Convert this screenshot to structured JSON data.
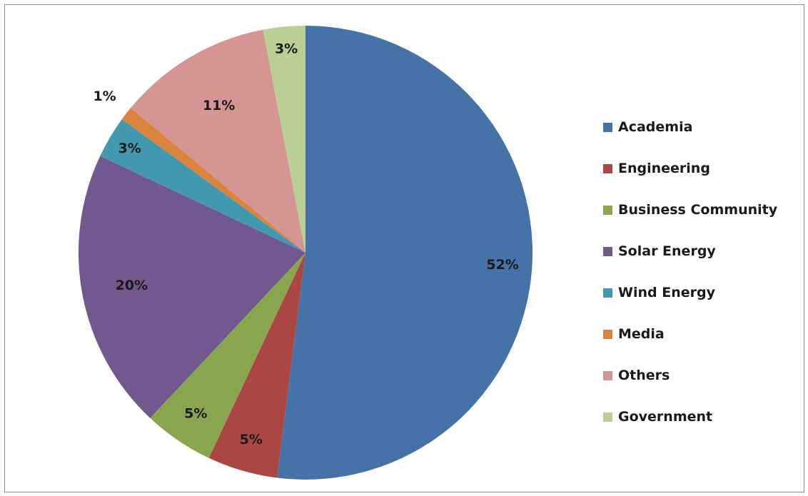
{
  "chart_data": {
    "type": "pie",
    "title": "",
    "slices": [
      {
        "name": "Academia",
        "value": 52,
        "label": "52%",
        "color": "#4572a7"
      },
      {
        "name": "Engineering",
        "value": 5,
        "label": "5%",
        "color": "#aa4643"
      },
      {
        "name": "Business Community",
        "value": 5,
        "label": "5%",
        "color": "#89a54e"
      },
      {
        "name": "Solar Energy",
        "value": 20,
        "label": "20%",
        "color": "#71588f"
      },
      {
        "name": "Wind Energy",
        "value": 3,
        "label": "3%",
        "color": "#4198af"
      },
      {
        "name": "Media",
        "value": 1,
        "label": "1%",
        "color": "#db843d"
      },
      {
        "name": "Others",
        "value": 11,
        "label": "11%",
        "color": "#d59593"
      },
      {
        "name": "Government",
        "value": 3,
        "label": "3%",
        "color": "#b9cf96"
      }
    ],
    "start": "12 o'clock",
    "direction": "clockwise",
    "legend_position": "right"
  }
}
